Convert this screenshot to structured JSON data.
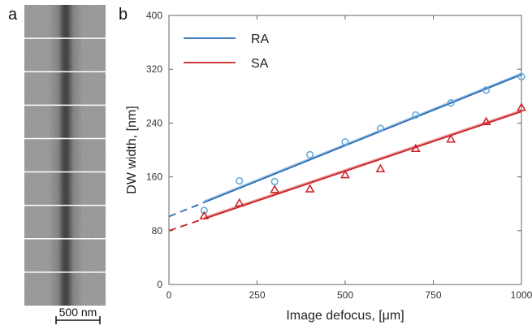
{
  "panels": {
    "a_label": "a",
    "b_label": "b"
  },
  "micrograph": {
    "strips": 9,
    "scale_bar_label": "500 nm",
    "image_description": "stack of grayscale TEM strips showing a dark vertical domain wall band"
  },
  "colors": {
    "RA": "#2a6bb3",
    "RA_light": "#9cc4e4",
    "RA_marker": "#5aa7dc",
    "SA": "#cc1f24",
    "SA_light": "#e89393",
    "axis": "#666666"
  },
  "chart_data": {
    "type": "scatter",
    "xlabel": "Image defocus, [μm]",
    "ylabel": "DW width, [nm]",
    "xlim": [
      0,
      1000
    ],
    "ylim": [
      0,
      400
    ],
    "xticks": [
      0,
      250,
      500,
      750,
      1000
    ],
    "yticks": [
      0,
      80,
      160,
      240,
      320,
      400
    ],
    "grid": false,
    "legend_position": "top-left",
    "series": [
      {
        "name": "RA",
        "marker": "circle",
        "x": [
          100,
          200,
          300,
          400,
          500,
          600,
          700,
          800,
          900,
          1000
        ],
        "y": [
          110,
          154,
          153,
          193,
          212,
          232,
          252,
          270,
          289,
          309
        ],
        "fit": {
          "intercept": 101,
          "slope": 0.211,
          "solid_from": 100,
          "solid_to": 1000
        }
      },
      {
        "name": "SA",
        "marker": "triangle",
        "x": [
          100,
          200,
          300,
          400,
          500,
          600,
          700,
          800,
          900,
          1000
        ],
        "y": [
          102,
          121,
          141,
          142,
          163,
          172,
          202,
          216,
          242,
          263
        ],
        "fit": {
          "intercept": 80,
          "slope": 0.177,
          "solid_from": 100,
          "solid_to": 1000
        }
      }
    ]
  }
}
